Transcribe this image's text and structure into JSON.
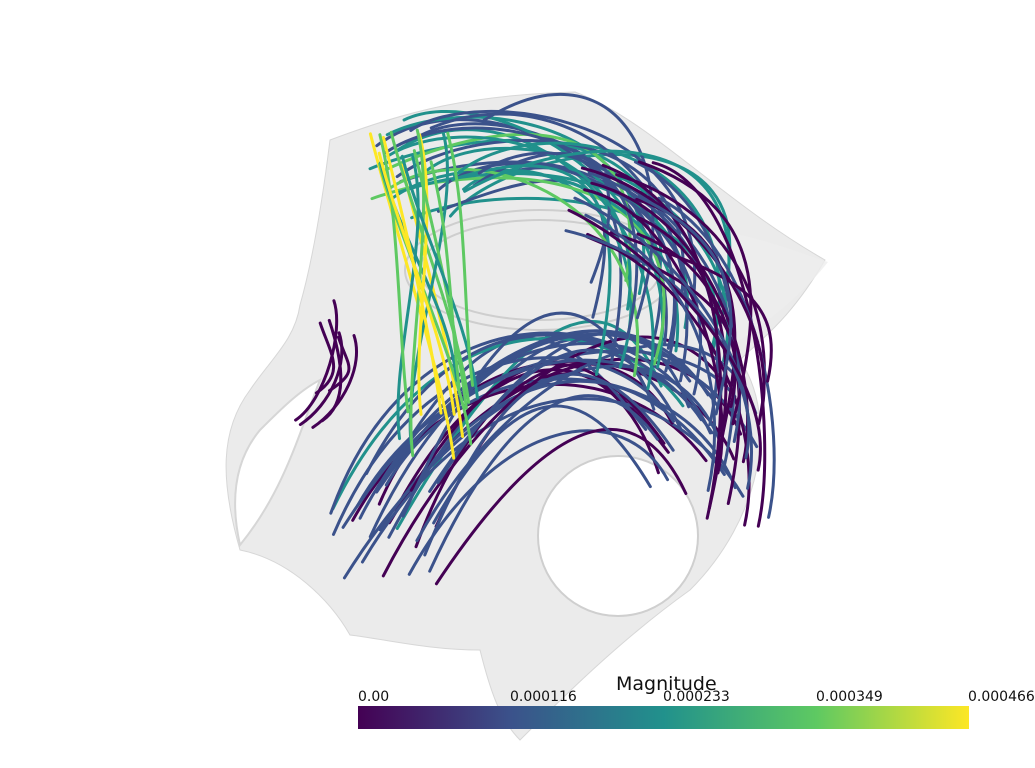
{
  "scalar_bar": {
    "title": "Magnitude",
    "ticks": [
      "0.00",
      "0.000116",
      "0.000233",
      "0.000349",
      "0.000466"
    ],
    "colormap": [
      "#440154",
      "#3b528b",
      "#21918c",
      "#5ec962",
      "#fde725"
    ],
    "range": [
      0.0,
      0.000466
    ]
  },
  "scene": {
    "background_color": "#ffffff",
    "surface_color": "#e6e6e6"
  }
}
